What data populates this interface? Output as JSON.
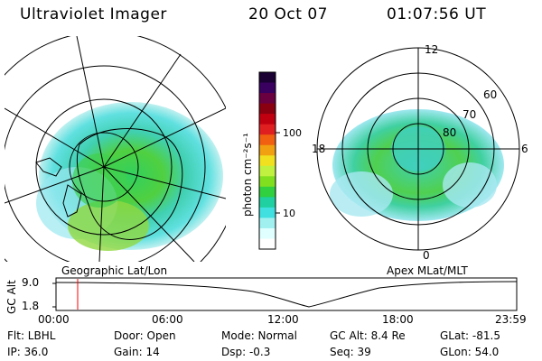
{
  "header": {
    "instrument": "Ultraviolet Imager",
    "date": "20 Oct 07",
    "time": "01:07:56 UT"
  },
  "colorbar": {
    "unit_label": "photon cm⁻²s⁻¹",
    "ticks": [
      "100",
      "10"
    ],
    "colors": [
      "#1a0033",
      "#3a0060",
      "#6a0040",
      "#8a0010",
      "#c00010",
      "#e02020",
      "#f06010",
      "#f0a010",
      "#f0e020",
      "#c0f040",
      "#80e020",
      "#30d040",
      "#20d0a0",
      "#40e0e0",
      "#a0f0f0",
      "#e0ffff",
      "#ffffff"
    ]
  },
  "left_map": {
    "label": "Geographic Lat/Lon"
  },
  "right_map": {
    "label": "Apex MLat/MLT",
    "mlt_labels": {
      "top": "12",
      "left": "18",
      "right": "6",
      "bottom": "0"
    },
    "lat_labels": [
      "60",
      "70",
      "80"
    ]
  },
  "timeline": {
    "axis_label": "GC Alt",
    "y_ticks": [
      "9.0",
      "1.8"
    ],
    "x_ticks": [
      "00:00",
      "06:00",
      "12:00",
      "18:00",
      "23:59"
    ],
    "marker_color": "#ff0000",
    "current_fraction": 0.047
  },
  "status": {
    "flt": "Flt: LBHL",
    "ip": "IP: 36.0",
    "door": "Door: Open",
    "gain": "Gain: 14",
    "mode": "Mode: Normal",
    "dsp": "Dsp:   -0.3",
    "gcalt": "GC Alt: 8.4 Re",
    "seq": "Seq: 39",
    "glat": "GLat: -81.5",
    "glon": "GLon:  54.0"
  }
}
